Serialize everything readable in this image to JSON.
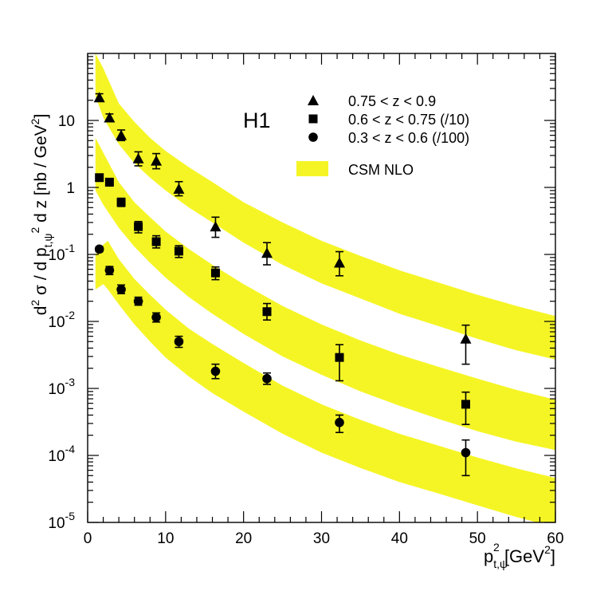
{
  "chart_data": {
    "type": "scatter",
    "title": "",
    "experiment_label": "H1",
    "xlabel": {
      "base": "p",
      "sub": "t,ψ",
      "sup": "2",
      "unit_open": "  [GeV",
      "unit_sup": "2",
      "unit_close": "]"
    },
    "ylabel": {
      "parts": [
        {
          "t": "d",
          "k": "n"
        },
        {
          "t": "2",
          "k": "sup"
        },
        {
          "t": " σ / d p",
          "k": "n"
        },
        {
          "t": "t,ψ",
          "k": "sub"
        },
        {
          "t": "2",
          "k": "sup"
        },
        {
          "t": " d z  [nb / GeV",
          "k": "n"
        },
        {
          "t": "2",
          "k": "sup"
        },
        {
          "t": "]",
          "k": "n"
        }
      ]
    },
    "x_axis": {
      "min": 0,
      "max": 60,
      "major_ticks": [
        0,
        10,
        20,
        30,
        40,
        50,
        60
      ],
      "labels": [
        "0",
        "10",
        "20",
        "30",
        "40",
        "50",
        "60"
      ]
    },
    "y_axis": {
      "scale": "log",
      "min": 1e-05,
      "max": 100,
      "decade_labels": [
        {
          "value": 10,
          "base": "10",
          "exp": ""
        },
        {
          "value": 1,
          "base": "1",
          "exp": ""
        },
        {
          "value": 0.1,
          "base": "10",
          "exp": "-1"
        },
        {
          "value": 0.01,
          "base": "10",
          "exp": "-2"
        },
        {
          "value": 0.001,
          "base": "10",
          "exp": "-3"
        },
        {
          "value": 0.0001,
          "base": "10",
          "exp": "-4"
        },
        {
          "value": 1e-05,
          "base": "10",
          "exp": "-5"
        }
      ]
    },
    "series": [
      {
        "name": "0.75 < z < 0.9",
        "marker": "triangle",
        "points": [
          {
            "x": 1.5,
            "y": 22,
            "lo": 20,
            "hi": 25
          },
          {
            "x": 2.8,
            "y": 11,
            "lo": 9.8,
            "hi": 12.5
          },
          {
            "x": 4.3,
            "y": 6.0,
            "lo": 5.0,
            "hi": 7.2
          },
          {
            "x": 6.5,
            "y": 2.7,
            "lo": 2.1,
            "hi": 3.4
          },
          {
            "x": 8.8,
            "y": 2.5,
            "lo": 1.9,
            "hi": 3.2
          },
          {
            "x": 11.7,
            "y": 0.95,
            "lo": 0.75,
            "hi": 1.22
          },
          {
            "x": 16.4,
            "y": 0.26,
            "lo": 0.18,
            "hi": 0.36
          },
          {
            "x": 23.0,
            "y": 0.105,
            "lo": 0.07,
            "hi": 0.15
          },
          {
            "x": 32.3,
            "y": 0.075,
            "lo": 0.048,
            "hi": 0.11
          },
          {
            "x": 48.5,
            "y": 0.0055,
            "lo": 0.0023,
            "hi": 0.0088
          }
        ]
      },
      {
        "name": "0.6 < z < 0.75  (/10)",
        "marker": "square",
        "points": [
          {
            "x": 1.5,
            "y": 1.4,
            "lo": 1.28,
            "hi": 1.52
          },
          {
            "x": 2.8,
            "y": 1.2,
            "lo": 1.05,
            "hi": 1.35
          },
          {
            "x": 4.3,
            "y": 0.6,
            "lo": 0.52,
            "hi": 0.69
          },
          {
            "x": 6.5,
            "y": 0.26,
            "lo": 0.21,
            "hi": 0.31
          },
          {
            "x": 8.8,
            "y": 0.155,
            "lo": 0.125,
            "hi": 0.19
          },
          {
            "x": 11.7,
            "y": 0.112,
            "lo": 0.09,
            "hi": 0.135
          },
          {
            "x": 16.4,
            "y": 0.053,
            "lo": 0.042,
            "hi": 0.065
          },
          {
            "x": 23.0,
            "y": 0.014,
            "lo": 0.0105,
            "hi": 0.0185
          },
          {
            "x": 32.3,
            "y": 0.0029,
            "lo": 0.0013,
            "hi": 0.0045
          },
          {
            "x": 48.5,
            "y": 0.00058,
            "lo": 0.00029,
            "hi": 0.00088
          }
        ]
      },
      {
        "name": "0.3 < z < 0.6  (/100)",
        "marker": "circle",
        "points": [
          {
            "x": 1.5,
            "y": 0.12,
            "lo": 0.11,
            "hi": 0.13
          },
          {
            "x": 2.8,
            "y": 0.058,
            "lo": 0.05,
            "hi": 0.066
          },
          {
            "x": 4.3,
            "y": 0.03,
            "lo": 0.026,
            "hi": 0.035
          },
          {
            "x": 6.5,
            "y": 0.02,
            "lo": 0.0175,
            "hi": 0.023
          },
          {
            "x": 8.8,
            "y": 0.0115,
            "lo": 0.0098,
            "hi": 0.0134
          },
          {
            "x": 11.7,
            "y": 0.005,
            "lo": 0.0041,
            "hi": 0.006
          },
          {
            "x": 16.4,
            "y": 0.0018,
            "lo": 0.0014,
            "hi": 0.0023
          },
          {
            "x": 23.0,
            "y": 0.0014,
            "lo": 0.00115,
            "hi": 0.0017
          },
          {
            "x": 32.3,
            "y": 0.00031,
            "lo": 0.00022,
            "hi": 0.0004
          },
          {
            "x": 48.5,
            "y": 0.00011,
            "lo": 5e-05,
            "hi": 0.00017
          }
        ]
      }
    ],
    "bands": [
      {
        "name": "CSM NLO (0.75 < z < 0.9)",
        "x": [
          1,
          2,
          4,
          6,
          8,
          10,
          13,
          16,
          20,
          25,
          30,
          35,
          40,
          45,
          50,
          55,
          60
        ],
        "lower": [
          23,
          11,
          4.4,
          2.3,
          1.4,
          0.9,
          0.5,
          0.3,
          0.15,
          0.07,
          0.037,
          0.022,
          0.013,
          0.0085,
          0.0055,
          0.0037,
          0.0027
        ],
        "upper": [
          100,
          60,
          18,
          9.5,
          5.5,
          3.5,
          2.0,
          1.2,
          0.6,
          0.3,
          0.16,
          0.095,
          0.058,
          0.038,
          0.025,
          0.017,
          0.012
        ]
      },
      {
        "name": "CSM NLO (0.6 < z < 0.75  (/10))",
        "x": [
          1,
          2,
          4,
          6,
          8,
          10,
          13,
          16,
          20,
          25,
          30,
          35,
          40,
          45,
          50,
          55,
          60
        ],
        "lower": [
          0.9,
          0.55,
          0.25,
          0.13,
          0.075,
          0.045,
          0.023,
          0.013,
          0.0065,
          0.003,
          0.0016,
          0.0009,
          0.00055,
          0.00035,
          0.00023,
          0.00016,
          0.00012
        ],
        "upper": [
          5.5,
          3.3,
          1.2,
          0.6,
          0.36,
          0.22,
          0.12,
          0.07,
          0.036,
          0.017,
          0.009,
          0.0052,
          0.0032,
          0.0021,
          0.0014,
          0.00095,
          0.00068
        ]
      },
      {
        "name": "CSM NLO (0.3 < z < 0.6  (/100))",
        "x": [
          1,
          2,
          2.6,
          4,
          6,
          8,
          10,
          13,
          16,
          20,
          25,
          30,
          35,
          40,
          45,
          50,
          55,
          60
        ],
        "lower": [
          0.03,
          0.036,
          0.03,
          0.018,
          0.009,
          0.005,
          0.0029,
          0.0015,
          0.00085,
          0.00045,
          0.00021,
          0.00011,
          6.5e-05,
          4e-05,
          2.7e-05,
          1.8e-05,
          1.2e-05,
          8.5e-06
        ],
        "upper": [
          0.1,
          0.14,
          0.16,
          0.085,
          0.043,
          0.025,
          0.015,
          0.0078,
          0.0046,
          0.0024,
          0.0011,
          0.00058,
          0.00034,
          0.00021,
          0.00014,
          9.3e-05,
          6.4e-05,
          4.6e-05
        ]
      }
    ],
    "legend": {
      "position": "top-right",
      "entries": [
        {
          "marker": "triangle",
          "label": "0.75 < z < 0.9"
        },
        {
          "marker": "square",
          "label": "0.6 < z < 0.75  (/10)"
        },
        {
          "marker": "circle",
          "label": "0.3 < z < 0.6  (/100)"
        },
        {
          "marker": "band",
          "label": "CSM NLO"
        }
      ]
    },
    "colors": {
      "band": "#f5f526",
      "marker": "#000000",
      "axis": "#000000"
    }
  }
}
